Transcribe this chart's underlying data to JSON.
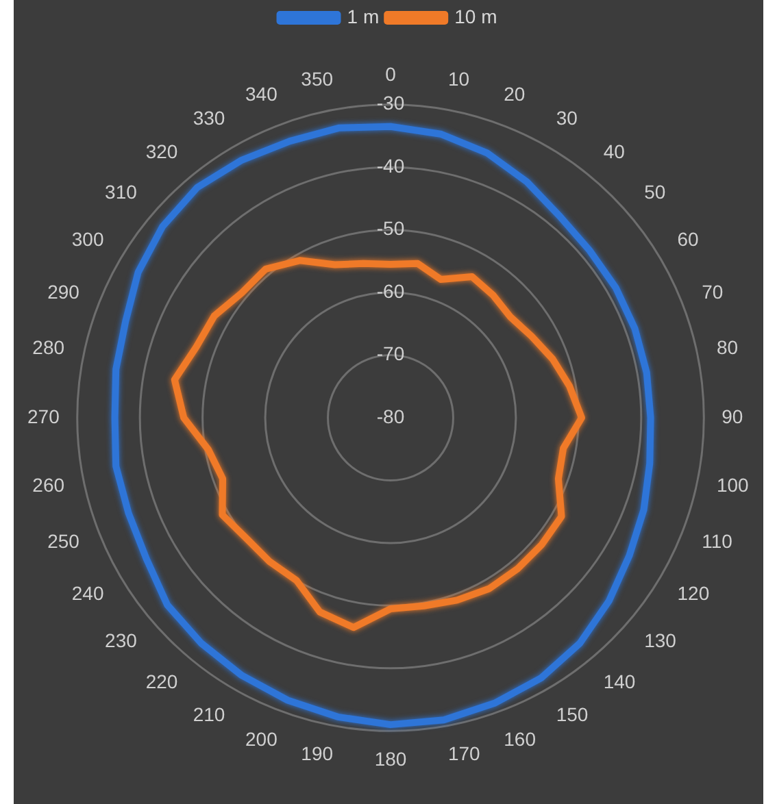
{
  "chart_data": {
    "type": "radar",
    "categories": [
      "0",
      "10",
      "20",
      "30",
      "40",
      "50",
      "60",
      "70",
      "80",
      "90",
      "100",
      "110",
      "120",
      "130",
      "140",
      "150",
      "160",
      "170",
      "180",
      "190",
      "200",
      "210",
      "220",
      "230",
      "240",
      "250",
      "260",
      "270",
      "280",
      "290",
      "300",
      "310",
      "320",
      "330",
      "340",
      "350"
    ],
    "series": [
      {
        "name": "1 m",
        "color": "#2e75d8",
        "values": [
          -33.5,
          -34,
          -35,
          -36.5,
          -38,
          -38.5,
          -38.5,
          -38.5,
          -38.5,
          -38.5,
          -38,
          -37,
          -36,
          -34.5,
          -33,
          -32,
          -31.5,
          -31,
          -31,
          -31.5,
          -32,
          -32.5,
          -33,
          -33.5,
          -35,
          -35.5,
          -35.5,
          -36,
          -35.5,
          -35,
          -33.5,
          -32.5,
          -32,
          -32.5,
          -33,
          -33
        ]
      },
      {
        "name": "10 m",
        "color": "#f07a28",
        "values": [
          -55.5,
          -55,
          -56.5,
          -54,
          -54.5,
          -55,
          -54,
          -52.5,
          -51,
          -49.5,
          -52,
          -51.5,
          -48.5,
          -48.5,
          -48.5,
          -48.5,
          -49,
          -49.5,
          -49.5,
          -46,
          -47,
          -50,
          -50,
          -50,
          -49,
          -51.5,
          -50.5,
          -47,
          -45,
          -47,
          -47.5,
          -49,
          -49,
          -51,
          -54,
          -55
        ]
      }
    ],
    "ylim": [
      -80,
      -30
    ],
    "yticks": [
      -80,
      -70,
      -60,
      -50,
      -40,
      -30
    ],
    "grid": true,
    "legend": "top",
    "marker": "none",
    "line_style": "solid"
  }
}
